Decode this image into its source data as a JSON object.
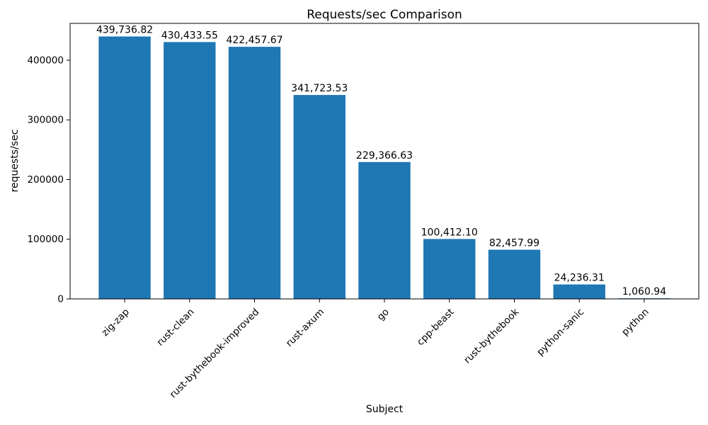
{
  "chart_data": {
    "type": "bar",
    "title": "Requests/sec Comparison",
    "xlabel": "Subject",
    "ylabel": "requests/sec",
    "categories": [
      "zig-zap",
      "rust-clean",
      "rust-bythebook-improved",
      "rust-axum",
      "go",
      "cpp-beast",
      "rust-bythebook",
      "python-sanic",
      "python"
    ],
    "values": [
      439736.82,
      430433.55,
      422457.67,
      341723.53,
      229366.63,
      100412.1,
      82457.99,
      24236.31,
      1060.94
    ],
    "value_labels": [
      "439,736.82",
      "430,433.55",
      "422,457.67",
      "341,723.53",
      "229,366.63",
      "100,412.10",
      "82,457.99",
      "24,236.31",
      "1,060.94"
    ],
    "yticks": [
      0,
      100000,
      200000,
      300000,
      400000
    ],
    "ytick_labels": [
      "0",
      "100000",
      "200000",
      "300000",
      "400000"
    ],
    "ylim": [
      0,
      461723.66
    ],
    "xlim": [
      -0.84,
      8.84
    ],
    "bar_width_units": 0.8,
    "xtick_rotation": 45,
    "bar_color": "#1f77b4",
    "axis_color": "#000000",
    "background_color": "#ffffff",
    "grid": false,
    "legend": null
  }
}
